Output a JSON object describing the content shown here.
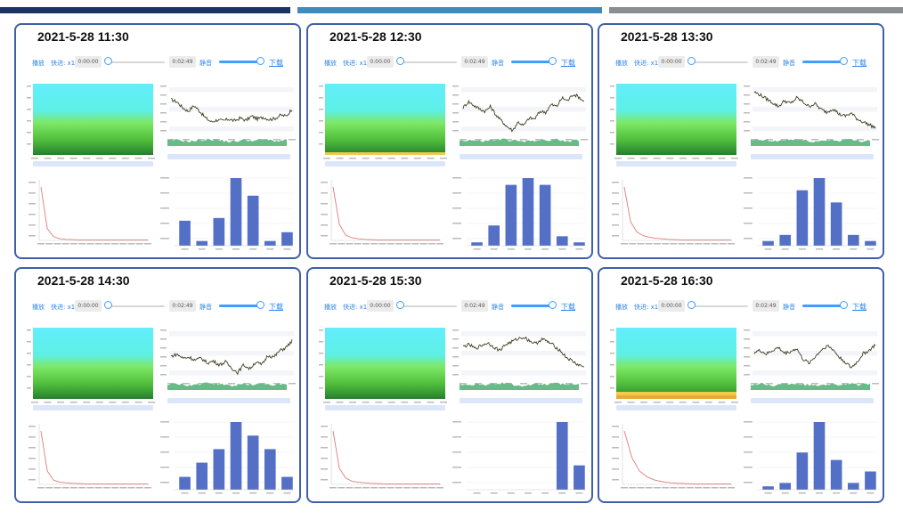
{
  "colors": {
    "topbar": [
      "#1d3363",
      "#3f8bbd",
      "#8a8d92"
    ],
    "panel_border": "#3f5fa8",
    "accent": "#409eff",
    "line": "#3d3d20",
    "area": "#66bb88",
    "decay": "#e07b7b",
    "bar": "#5470c6"
  },
  "player_labels": {
    "play": "播放",
    "speed": "快进: x1",
    "time_current": "0:00:00",
    "time_total": "0:02:49",
    "mute": "静音",
    "download": "下载"
  },
  "panels": [
    {
      "title": "2021-5-28 11:30"
    },
    {
      "title": "2021-5-28 12:30"
    },
    {
      "title": "2021-5-28 13:30"
    },
    {
      "title": "2021-5-28 14:30"
    },
    {
      "title": "2021-5-28 15:30"
    },
    {
      "title": "2021-5-28 16:30"
    }
  ],
  "chart_data": [
    {
      "panel": 0,
      "type": "heatmap",
      "title": "",
      "bottom_band": "none"
    },
    {
      "panel": 0,
      "type": "line",
      "title": "",
      "series_shape": [
        0.74,
        0.7,
        0.58,
        0.5,
        0.62,
        0.5,
        0.36,
        0.28,
        0.32,
        0.3,
        0.34,
        0.3,
        0.36,
        0.31,
        0.4,
        0.34,
        0.38,
        0.33,
        0.35,
        0.42,
        0.4,
        0.55
      ]
    },
    {
      "panel": 0,
      "type": "line",
      "title": "",
      "series_shape": [
        1,
        0.22,
        0.07,
        0.03,
        0.02,
        0.015,
        0.01,
        0.01,
        0.01,
        0.01,
        0.01,
        0.01,
        0.01,
        0.01,
        0.01,
        0.01,
        0.01,
        0.01
      ]
    },
    {
      "panel": 0,
      "type": "bar",
      "title": "",
      "values": [
        37,
        7,
        41,
        100,
        74,
        7,
        20
      ]
    },
    {
      "panel": 1,
      "type": "heatmap",
      "title": "",
      "bottom_band": "thin"
    },
    {
      "panel": 1,
      "type": "line",
      "title": "",
      "series_shape": [
        0.58,
        0.7,
        0.62,
        0.55,
        0.5,
        0.6,
        0.42,
        0.3,
        0.18,
        0.1,
        0.28,
        0.2,
        0.36,
        0.34,
        0.5,
        0.48,
        0.64,
        0.6,
        0.78,
        0.72,
        0.86,
        0.8,
        0.7
      ]
    },
    {
      "panel": 1,
      "type": "line",
      "title": "",
      "series_shape": [
        1,
        0.3,
        0.1,
        0.05,
        0.03,
        0.02,
        0.015,
        0.01,
        0.01,
        0.01,
        0.01,
        0.01,
        0.01,
        0.01,
        0.01,
        0.01,
        0.01,
        0.01
      ]
    },
    {
      "panel": 1,
      "type": "bar",
      "title": "",
      "values": [
        5,
        30,
        90,
        100,
        90,
        14,
        5
      ]
    },
    {
      "panel": 2,
      "type": "heatmap",
      "title": "",
      "bottom_band": "none"
    },
    {
      "panel": 2,
      "type": "line",
      "title": "",
      "series_shape": [
        0.9,
        0.84,
        0.76,
        0.68,
        0.6,
        0.72,
        0.66,
        0.78,
        0.7,
        0.6,
        0.66,
        0.54,
        0.48,
        0.56,
        0.44,
        0.4,
        0.46,
        0.34,
        0.28,
        0.22,
        0.16
      ]
    },
    {
      "panel": 2,
      "type": "line",
      "title": "",
      "series_shape": [
        1,
        0.35,
        0.16,
        0.09,
        0.06,
        0.04,
        0.03,
        0.02,
        0.015,
        0.01,
        0.01,
        0.01,
        0.01,
        0.01,
        0.01,
        0.01,
        0.01,
        0.01
      ]
    },
    {
      "panel": 2,
      "type": "bar",
      "title": "",
      "values": [
        7,
        16,
        82,
        100,
        64,
        16,
        7
      ]
    },
    {
      "panel": 3,
      "type": "heatmap",
      "title": "",
      "bottom_band": "none"
    },
    {
      "panel": 3,
      "type": "line",
      "title": "",
      "series_shape": [
        0.48,
        0.52,
        0.44,
        0.46,
        0.4,
        0.44,
        0.34,
        0.38,
        0.3,
        0.36,
        0.24,
        0.14,
        0.3,
        0.22,
        0.36,
        0.3,
        0.5,
        0.46,
        0.6,
        0.66,
        0.8
      ]
    },
    {
      "panel": 3,
      "type": "line",
      "title": "",
      "series_shape": [
        1,
        0.25,
        0.08,
        0.04,
        0.03,
        0.02,
        0.015,
        0.01,
        0.01,
        0.01,
        0.01,
        0.01,
        0.01,
        0.01,
        0.01,
        0.01,
        0.01,
        0.01
      ]
    },
    {
      "panel": 3,
      "type": "bar",
      "title": "",
      "values": [
        19,
        40,
        60,
        100,
        80,
        60,
        19
      ]
    },
    {
      "panel": 4,
      "type": "heatmap",
      "title": "",
      "bottom_band": "none"
    },
    {
      "panel": 4,
      "type": "line",
      "title": "",
      "series_shape": [
        0.68,
        0.72,
        0.64,
        0.7,
        0.76,
        0.68,
        0.6,
        0.72,
        0.78,
        0.84,
        0.88,
        0.8,
        0.74,
        0.84,
        0.78,
        0.7,
        0.6,
        0.46,
        0.38,
        0.3,
        0.26
      ]
    },
    {
      "panel": 4,
      "type": "line",
      "title": "",
      "series_shape": [
        1,
        0.3,
        0.12,
        0.06,
        0.04,
        0.03,
        0.02,
        0.015,
        0.01,
        0.01,
        0.01,
        0.01,
        0.01,
        0.01,
        0.01,
        0.01,
        0.01,
        0.01
      ]
    },
    {
      "panel": 4,
      "type": "bar",
      "title": "",
      "values": [
        0,
        0,
        0,
        0,
        0,
        100,
        36
      ]
    },
    {
      "panel": 5,
      "type": "heatmap",
      "title": "",
      "bottom_band": "thick"
    },
    {
      "panel": 5,
      "type": "line",
      "title": "",
      "series_shape": [
        0.56,
        0.6,
        0.52,
        0.6,
        0.66,
        0.54,
        0.58,
        0.64,
        0.42,
        0.34,
        0.46,
        0.6,
        0.7,
        0.62,
        0.46,
        0.36,
        0.24,
        0.36,
        0.54,
        0.6,
        0.72
      ]
    },
    {
      "panel": 5,
      "type": "line",
      "title": "",
      "series_shape": [
        1,
        0.5,
        0.25,
        0.14,
        0.08,
        0.05,
        0.03,
        0.02,
        0.015,
        0.01,
        0.01,
        0.01,
        0.01,
        0.01,
        0.01
      ]
    },
    {
      "panel": 5,
      "type": "bar",
      "title": "",
      "values": [
        5,
        10,
        55,
        100,
        44,
        10,
        27
      ]
    }
  ]
}
